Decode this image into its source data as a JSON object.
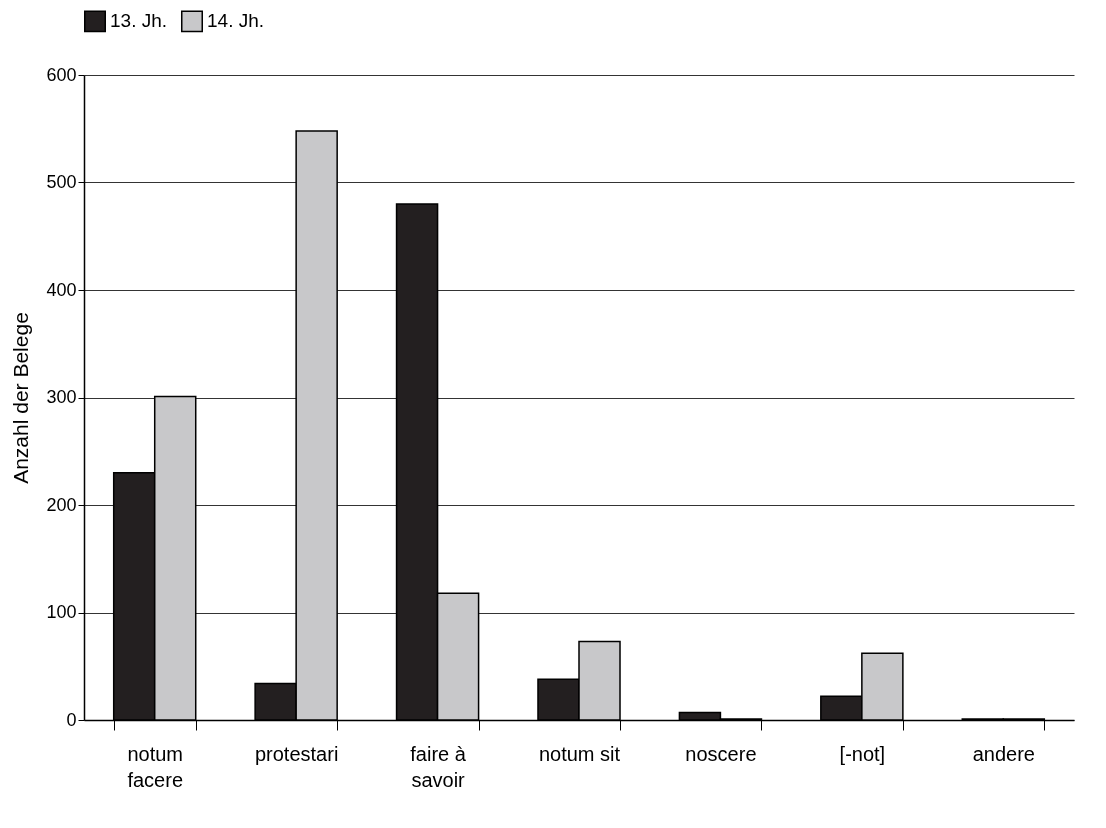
{
  "chart_data": {
    "type": "bar",
    "ylabel": "Anzahl der Belege",
    "categories": [
      "notum facere",
      "protestari",
      "faire à savoir",
      "notum sit",
      "noscere",
      "[-not]",
      "andere"
    ],
    "series": [
      {
        "name": "13. Jh.",
        "color": "#231f20",
        "values": [
          230,
          34,
          480,
          38,
          7,
          22,
          1
        ]
      },
      {
        "name": "14. Jh.",
        "color": "#c8c8ca",
        "values": [
          301,
          548,
          118,
          73,
          1,
          62,
          1
        ]
      }
    ],
    "ylim": [
      0,
      600
    ],
    "yticks": [
      0,
      100,
      200,
      300,
      400,
      500,
      600
    ],
    "grid": "y",
    "legend": "top"
  }
}
